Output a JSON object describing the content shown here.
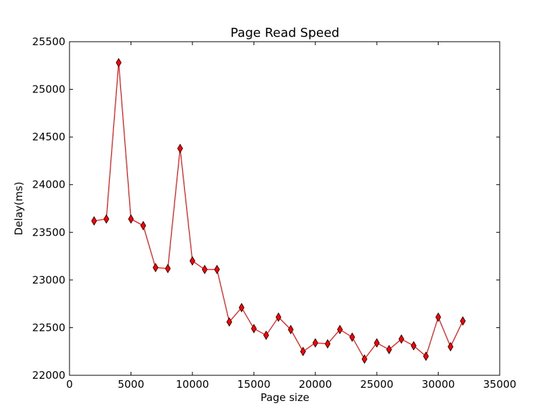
{
  "chart_data": {
    "type": "line",
    "title": "Page Read Speed",
    "xlabel": "Page size",
    "ylabel": "Delay(ms)",
    "xlim": [
      0,
      35000
    ],
    "ylim": [
      22000,
      25500
    ],
    "xticks": [
      0,
      5000,
      10000,
      15000,
      20000,
      25000,
      30000,
      35000
    ],
    "yticks": [
      22000,
      22500,
      23000,
      23500,
      24000,
      24500,
      25000,
      25500
    ],
    "grid": false,
    "series": [
      {
        "color": "#ff0000",
        "marker": "diamond",
        "marker_fill": "#ff0000",
        "x": [
          2000,
          3000,
          4000,
          5000,
          6000,
          7000,
          8000,
          9000,
          10000,
          11000,
          12000,
          13000,
          14000,
          15000,
          16000,
          17000,
          18000,
          19000,
          20000,
          21000,
          22000,
          23000,
          24000,
          25000,
          26000,
          27000,
          28000,
          29000,
          30000,
          31000,
          32000
        ],
        "y": [
          23620,
          23640,
          25280,
          23640,
          23570,
          23130,
          23120,
          24380,
          23200,
          23110,
          23110,
          22560,
          22710,
          22490,
          22420,
          22610,
          22480,
          22250,
          22340,
          22330,
          22480,
          22400,
          22170,
          22340,
          22270,
          22380,
          22310,
          22200,
          22610,
          22300,
          22570
        ]
      }
    ]
  }
}
